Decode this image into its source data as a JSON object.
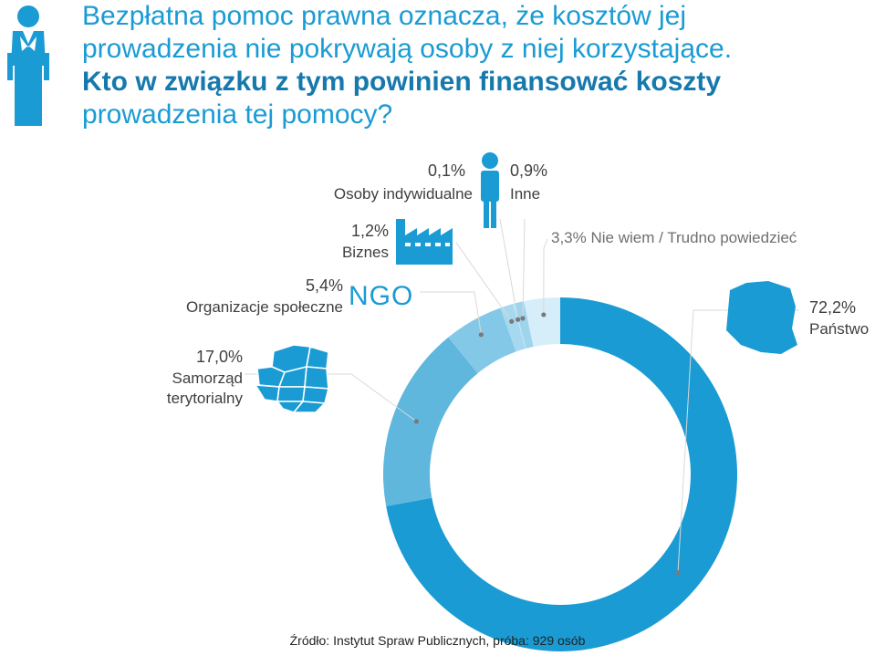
{
  "title": {
    "line1": "Bezpłatna pomoc prawna oznacza, że kosztów jej",
    "line2": "prowadzenia nie pokrywają osoby z niej korzystające.",
    "line3": "Kto w związku z tym powinien finansować koszty",
    "line4": "prowadzenia tej pomocy?"
  },
  "colors": {
    "title": "#1a9bd4",
    "title_bold": "#1679ad",
    "icons": "#1a9bd4"
  },
  "icons": {
    "header": "lawyer-icon",
    "osoby": "person-icon",
    "biznes": "factory-icon",
    "organizacje": "ngo-text-icon",
    "samorzad": "poland-regions-map-icon",
    "panstwo": "poland-map-icon"
  },
  "ngo_text": "NGO",
  "chart_data": {
    "type": "pie",
    "variant": "donut",
    "slices": [
      {
        "label": "Państwo",
        "percent": "72,2%",
        "value": 72.2,
        "color": "#1a9bd4"
      },
      {
        "label": "Samorząd terytorialny",
        "percent": "17,0%",
        "value": 17.0,
        "color": "#5fb7de"
      },
      {
        "label": "Organizacje społeczne",
        "percent": "5,4%",
        "value": 5.4,
        "color": "#84c8e8"
      },
      {
        "label": "Biznes",
        "percent": "1,2%",
        "value": 1.2,
        "color": "#a6d8ef"
      },
      {
        "label": "Osoby indywidualne",
        "percent": "0,1%",
        "value": 0.1,
        "color": "#bfe3f4"
      },
      {
        "label": "Inne",
        "percent": "0,9%",
        "value": 0.9,
        "color": "#9fd4ed"
      },
      {
        "label": "Nie wiem / Trudno powiedzieć",
        "percent": "3,3%",
        "value": 3.3,
        "color": "#d6eef9"
      }
    ]
  },
  "labels": {
    "panstwo_pct": "72,2%",
    "panstwo_name": "Państwo",
    "samorzad_pct": "17,0%",
    "samorzad_name1": "Samorząd",
    "samorzad_name2": "terytorialny",
    "org_pct": "5,4%",
    "org_name": "Organizacje społeczne",
    "biznes_pct": "1,2%",
    "biznes_name": "Biznes",
    "osoby_pct": "0,1%",
    "osoby_name": "Osoby indywidualne",
    "inne_pct": "0,9%",
    "inne_name": "Inne",
    "niewiem": "3,3%  Nie wiem / Trudno powiedzieć"
  },
  "source": "Źródło: Instytut Spraw Publicznych, próba: 929 osób"
}
